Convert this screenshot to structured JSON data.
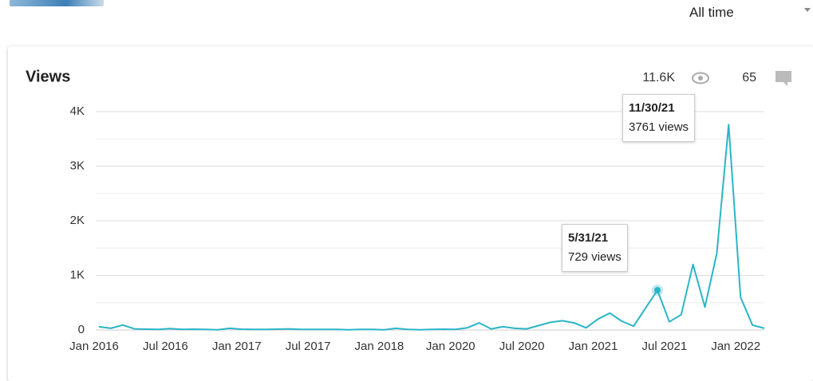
{
  "header": {
    "range": "All time"
  },
  "stats": {
    "views": "11.6K",
    "comments": "65"
  },
  "chart_data": {
    "type": "line",
    "title": "Views",
    "categories": [
      "Jan 2016",
      null,
      null,
      null,
      null,
      null,
      "Jul 2016",
      null,
      null,
      null,
      null,
      null,
      "Jan 2017",
      null,
      null,
      null,
      null,
      null,
      "Jul 2017",
      null,
      null,
      null,
      null,
      null,
      "Jan 2018",
      null,
      null,
      null,
      null,
      null,
      "Jan 2020",
      null,
      null,
      null,
      null,
      null,
      "Jul 2020",
      null,
      null,
      null,
      null,
      null,
      "Jan 2021",
      null,
      null,
      null,
      null,
      null,
      "Jul 2021",
      null,
      null,
      null,
      null,
      null,
      "Jan 2022",
      null,
      null
    ],
    "series": [
      {
        "name": "Views",
        "color": "#2bb5c8",
        "values": [
          60,
          30,
          90,
          20,
          15,
          10,
          25,
          10,
          15,
          10,
          5,
          30,
          15,
          10,
          10,
          15,
          20,
          10,
          10,
          10,
          10,
          5,
          10,
          10,
          5,
          30,
          10,
          5,
          10,
          15,
          10,
          40,
          130,
          20,
          60,
          30,
          20,
          80,
          140,
          170,
          130,
          40,
          200,
          310,
          160,
          70,
          400,
          729,
          150,
          280,
          1200,
          420,
          1400,
          3761,
          600,
          90,
          30
        ]
      }
    ],
    "ylim": [
      0,
      4000
    ],
    "yticks": [
      0,
      {
        "value": 1000,
        "label": "1K"
      },
      {
        "value": 2000,
        "label": "2K"
      },
      {
        "value": 3000,
        "label": "3K"
      },
      {
        "value": 4000,
        "label": "4K"
      }
    ],
    "minor_yticks": [
      500,
      1500,
      2500,
      3500
    ],
    "grid": true,
    "tooltips": [
      {
        "date": "5/31/21",
        "text": "729 views"
      },
      {
        "date": "11/30/21",
        "text": "3761 views"
      }
    ],
    "highlight_index": 47
  }
}
